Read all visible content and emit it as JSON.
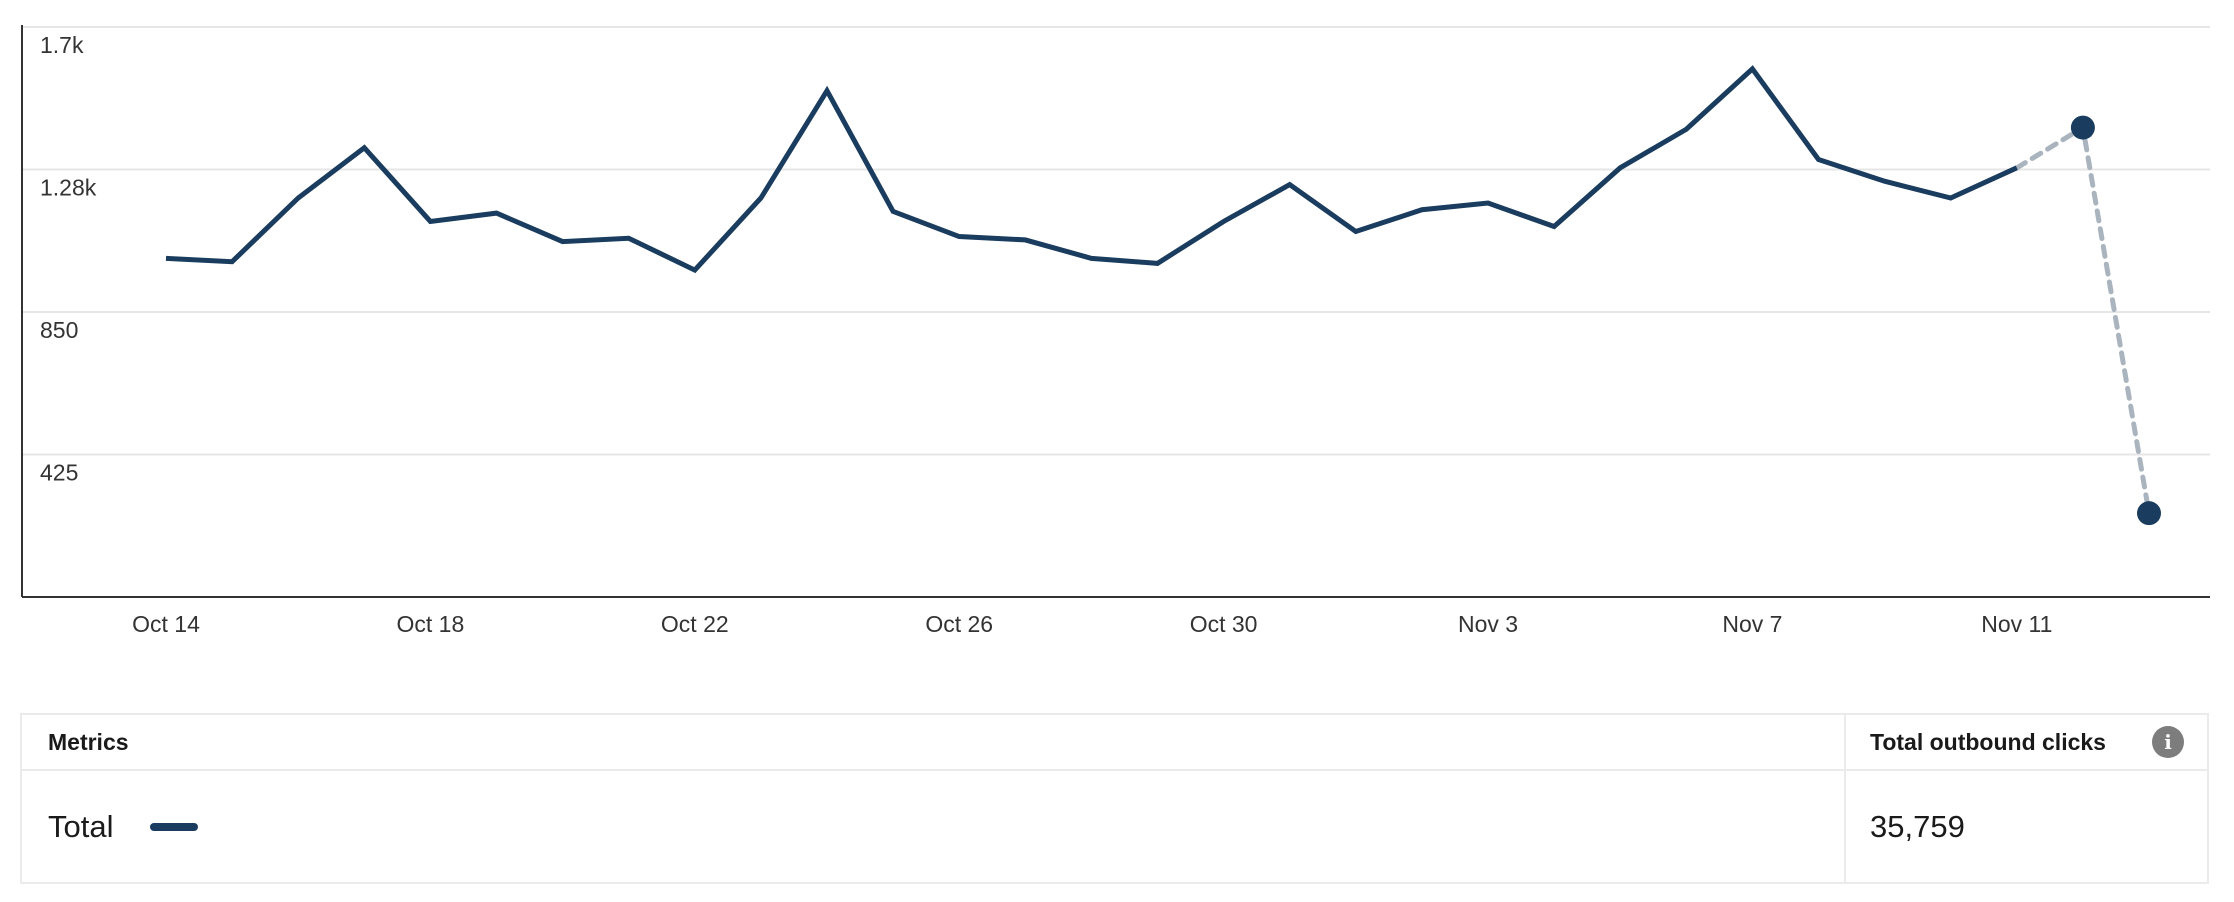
{
  "chart_data": {
    "type": "line",
    "y_ticks": [
      "1.7k",
      "1.28k",
      "850",
      "425"
    ],
    "y_tick_values": [
      1700,
      1275,
      850,
      425
    ],
    "ylim": [
      0,
      1700
    ],
    "x_ticks": [
      "Oct 14",
      "Oct 18",
      "Oct 22",
      "Oct 26",
      "Oct 30",
      "Nov 3",
      "Nov 7",
      "Nov 11"
    ],
    "x": [
      "Oct 14",
      "Oct 15",
      "Oct 16",
      "Oct 17",
      "Oct 18",
      "Oct 19",
      "Oct 20",
      "Oct 21",
      "Oct 22",
      "Oct 23",
      "Oct 24",
      "Oct 25",
      "Oct 26",
      "Oct 27",
      "Oct 28",
      "Oct 29",
      "Oct 30",
      "Oct 31",
      "Nov 1",
      "Nov 2",
      "Nov 3",
      "Nov 4",
      "Nov 5",
      "Nov 6",
      "Nov 7",
      "Nov 8",
      "Nov 9",
      "Nov 10",
      "Nov 11",
      "Nov 12",
      "Nov 13"
    ],
    "series": [
      {
        "values": [
          1010,
          1000,
          1190,
          1340,
          1120,
          1145,
          1060,
          1070,
          975,
          1190,
          1510,
          1150,
          1075,
          1065,
          1010,
          995,
          1120,
          1230,
          1090,
          1155,
          1175,
          1105,
          1280,
          1395,
          1575,
          1305,
          1240,
          1190,
          1280,
          1400,
          250
        ],
        "dashed_from_index": 28,
        "markers_at_index": [
          29,
          30
        ]
      }
    ],
    "grid": true,
    "colors": {
      "line": "#1a3c5e",
      "dashed": "#a9b4be",
      "grid": "#e6e6e6",
      "axis": "#333333"
    }
  },
  "table": {
    "header_metrics": "Metrics",
    "header_clicks": "Total outbound clicks",
    "info_glyph": "i",
    "row_label": "Total",
    "row_value": "35,759",
    "legend_color": "#1a3c5e"
  }
}
